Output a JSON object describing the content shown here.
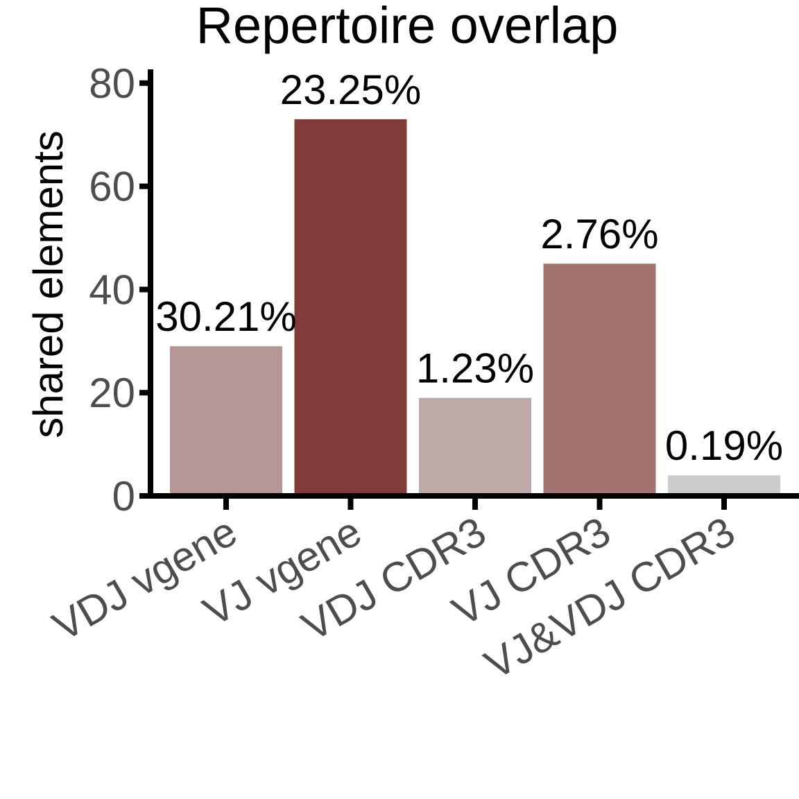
{
  "chart_data": {
    "type": "bar",
    "title": "Repertoire overlap",
    "ylabel": "shared elements",
    "xlabel": "",
    "ylim": [
      0,
      82
    ],
    "yticks": [
      0,
      20,
      40,
      60,
      80
    ],
    "categories": [
      "VDJ vgene",
      "VJ vgene",
      "VDJ CDR3",
      "VJ CDR3",
      "VJ&VDJ CDR3"
    ],
    "values": [
      29,
      73,
      19,
      45,
      4
    ],
    "data_labels": [
      "30.21%",
      "23.25%",
      "1.23%",
      "2.76%",
      "0.19%"
    ],
    "colors": [
      "#b49694",
      "#813c3a",
      "#bdaaa9",
      "#a27270",
      "#cccccc"
    ],
    "grid": false,
    "legend": "none"
  }
}
